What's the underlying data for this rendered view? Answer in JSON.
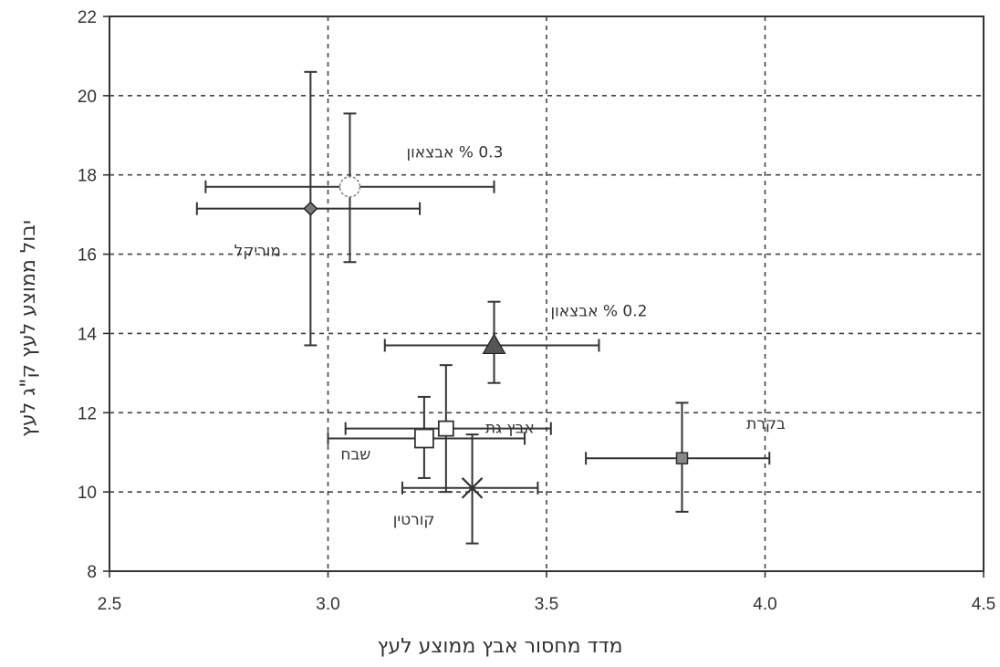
{
  "chart_data": {
    "type": "scatter",
    "title": "",
    "xlabel": "מדד מחסור אבץ ממוצע לעץ",
    "ylabel": "יבול ממוצע לעץ ק\"ג לעץ",
    "xlim": [
      2.5,
      4.5
    ],
    "ylim": [
      8,
      22
    ],
    "xticks": [
      2.5,
      3.0,
      3.5,
      4.0,
      4.5
    ],
    "xtick_labels": [
      "2.5",
      "3.0",
      "3.5",
      "4.0",
      "4.5"
    ],
    "yticks": [
      8,
      10,
      12,
      14,
      16,
      18,
      20,
      22
    ],
    "ytick_labels": [
      "8",
      "10",
      "12",
      "14",
      "16",
      "18",
      "20",
      "22"
    ],
    "grid": true,
    "grid_style": "dashed",
    "error_bars": true,
    "points": [
      {
        "label": "מוריקל",
        "x": 2.96,
        "y": 17.15,
        "xerr_low": 2.7,
        "xerr_high": 3.21,
        "yerr_low": 13.7,
        "yerr_high": 20.6,
        "marker": "diamond"
      },
      {
        "label": "0.3 % אבצאון",
        "x": 3.05,
        "y": 17.7,
        "xerr_low": 2.72,
        "xerr_high": 3.38,
        "yerr_low": 15.8,
        "yerr_high": 19.55,
        "marker": "circle-open"
      },
      {
        "label": "0.2 % אבצאון",
        "x": 3.38,
        "y": 13.7,
        "xerr_low": 3.13,
        "xerr_high": 3.62,
        "yerr_low": 12.75,
        "yerr_high": 14.8,
        "marker": "triangle"
      },
      {
        "label": "אבץ גת",
        "x": 3.27,
        "y": 11.6,
        "xerr_low": 3.04,
        "xerr_high": 3.51,
        "yerr_low": 10.0,
        "yerr_high": 13.2,
        "marker": "square-half"
      },
      {
        "label": "שבח",
        "x": 3.22,
        "y": 11.35,
        "xerr_low": 3.0,
        "xerr_high": 3.45,
        "yerr_low": 10.35,
        "yerr_high": 12.4,
        "marker": "square-open"
      },
      {
        "label": "קורטין",
        "x": 3.33,
        "y": 10.1,
        "xerr_low": 3.17,
        "xerr_high": 3.48,
        "yerr_low": 8.7,
        "yerr_high": 11.45,
        "marker": "x"
      },
      {
        "label": "בקרת",
        "x": 3.81,
        "y": 10.85,
        "xerr_low": 3.59,
        "xerr_high": 4.01,
        "yerr_low": 9.5,
        "yerr_high": 12.25,
        "marker": "square-small"
      }
    ]
  }
}
